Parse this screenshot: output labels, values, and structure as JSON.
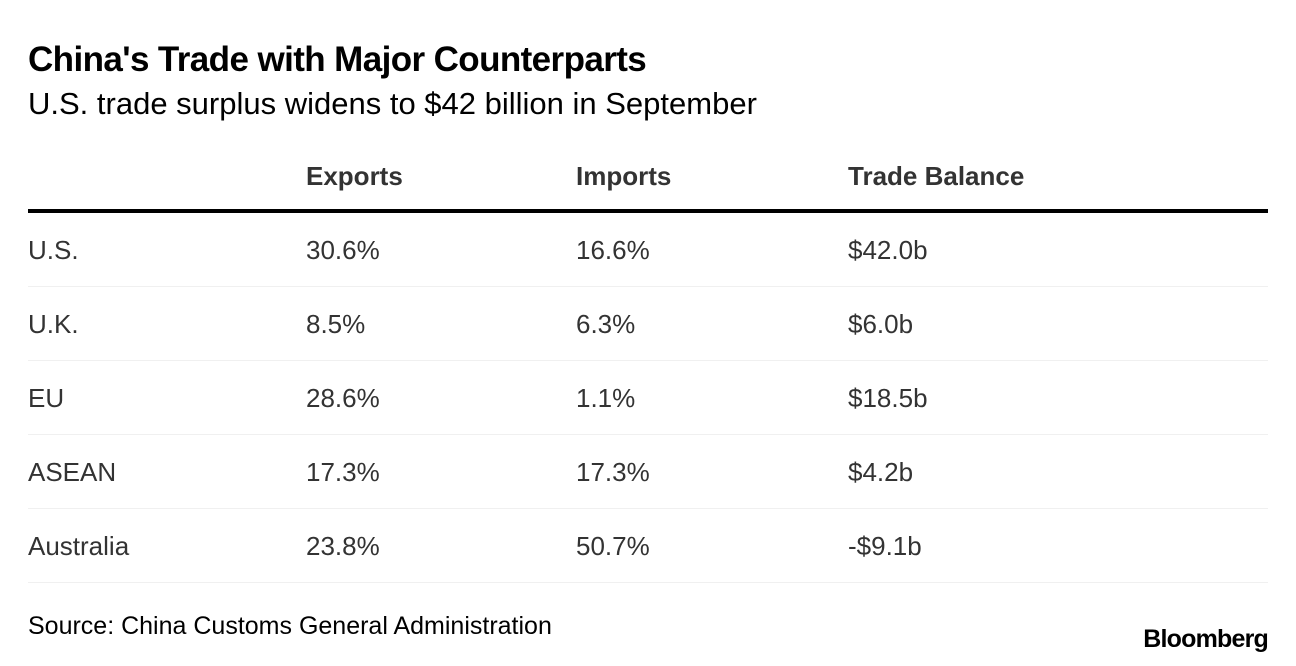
{
  "header": {
    "title": "China's Trade with Major Counterparts",
    "subtitle": "U.S. trade surplus widens to $42 billion in September"
  },
  "chart_data": {
    "type": "table",
    "title": "China's Trade with Major Counterparts",
    "subtitle": "U.S. trade surplus widens to $42 billion in September",
    "columns": [
      "",
      "Exports",
      "Imports",
      "Trade Balance"
    ],
    "rows": [
      {
        "counterpart": "U.S.",
        "exports": "30.6%",
        "imports": "16.6%",
        "trade_balance": "$42.0b"
      },
      {
        "counterpart": "U.K.",
        "exports": "8.5%",
        "imports": "6.3%",
        "trade_balance": "$6.0b"
      },
      {
        "counterpart": "EU",
        "exports": "28.6%",
        "imports": "1.1%",
        "trade_balance": "$18.5b"
      },
      {
        "counterpart": "ASEAN",
        "exports": "17.3%",
        "imports": "17.3%",
        "trade_balance": "$4.2b"
      },
      {
        "counterpart": "Australia",
        "exports": "23.8%",
        "imports": "50.7%",
        "trade_balance": "-$9.1b"
      }
    ]
  },
  "footer": {
    "source": "Source: China Customs General Administration",
    "logo": "Bloomberg"
  },
  "colors": {
    "text": "#000000",
    "table_text": "#333333",
    "header_rule": "#000000",
    "row_divider": "#f0f0f0",
    "background": "#ffffff"
  }
}
